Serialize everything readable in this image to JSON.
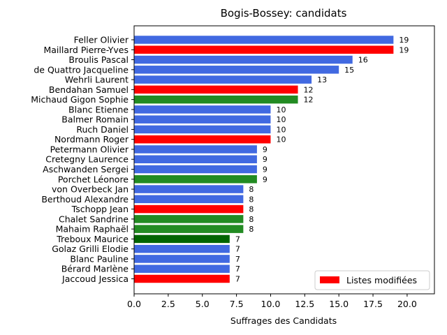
{
  "chart_data": {
    "type": "bar",
    "orientation": "horizontal",
    "title": "Bogis-Bossey: candidats",
    "xlabel": "Suffrages des Candidats",
    "ylabel": "",
    "xlim": [
      0,
      22
    ],
    "xticks": [
      "0.0",
      "2.5",
      "5.0",
      "7.5",
      "10.0",
      "12.5",
      "15.0",
      "17.5",
      "20.0"
    ],
    "xtick_values": [
      0,
      2.5,
      5,
      7.5,
      10,
      12.5,
      15,
      17.5,
      20
    ],
    "grid": false,
    "legend": {
      "placement": "lower-right",
      "entries": [
        {
          "label": "Listes modifiées",
          "color": "#ff0000"
        }
      ]
    },
    "colors": {
      "blue": "#4169e1",
      "red": "#ff0000",
      "green": "#228b22",
      "darkgreen": "#006400"
    },
    "bars": [
      {
        "label": "Feller Olivier",
        "value": 19,
        "color": "blue"
      },
      {
        "label": "Maillard Pierre-Yves",
        "value": 19,
        "color": "red"
      },
      {
        "label": "Broulis Pascal",
        "value": 16,
        "color": "blue"
      },
      {
        "label": "de Quattro Jacqueline",
        "value": 15,
        "color": "blue"
      },
      {
        "label": "Wehrli Laurent",
        "value": 13,
        "color": "blue"
      },
      {
        "label": "Bendahan Samuel",
        "value": 12,
        "color": "red"
      },
      {
        "label": "Michaud Gigon Sophie",
        "value": 12,
        "color": "green"
      },
      {
        "label": "Blanc Etienne",
        "value": 10,
        "color": "blue"
      },
      {
        "label": "Balmer Romain",
        "value": 10,
        "color": "blue"
      },
      {
        "label": "Ruch Daniel",
        "value": 10,
        "color": "blue"
      },
      {
        "label": "Nordmann Roger",
        "value": 10,
        "color": "red"
      },
      {
        "label": "Petermann Olivier",
        "value": 9,
        "color": "blue"
      },
      {
        "label": "Cretegny Laurence",
        "value": 9,
        "color": "blue"
      },
      {
        "label": "Aschwanden Sergei",
        "value": 9,
        "color": "blue"
      },
      {
        "label": "Porchet Léonore",
        "value": 9,
        "color": "green"
      },
      {
        "label": "von Overbeck Jan",
        "value": 8,
        "color": "blue"
      },
      {
        "label": "Berthoud Alexandre",
        "value": 8,
        "color": "blue"
      },
      {
        "label": "Tschopp Jean",
        "value": 8,
        "color": "red"
      },
      {
        "label": "Chalet Sandrine",
        "value": 8,
        "color": "green"
      },
      {
        "label": "Mahaim Raphaël",
        "value": 8,
        "color": "green"
      },
      {
        "label": "Treboux Maurice",
        "value": 7,
        "color": "darkgreen"
      },
      {
        "label": "Golaz Grilli Elodie",
        "value": 7,
        "color": "blue"
      },
      {
        "label": "Blanc Pauline",
        "value": 7,
        "color": "blue"
      },
      {
        "label": "Bérard Marlène",
        "value": 7,
        "color": "blue"
      },
      {
        "label": "Jaccoud Jessica",
        "value": 7,
        "color": "red"
      }
    ]
  }
}
